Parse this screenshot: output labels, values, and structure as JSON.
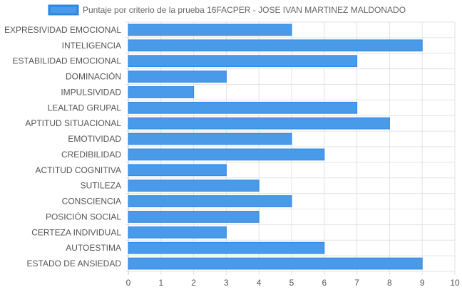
{
  "chart_data": {
    "type": "bar",
    "orientation": "horizontal",
    "legend": {
      "label": "Puntaje por criterio de la prueba 16FACPER - JOSE IVAN MARTINEZ MALDONADO",
      "position": "top"
    },
    "categories": [
      "EXPRESIVIDAD EMOCIONAL",
      "INTELIGENCIA",
      "ESTABILIDAD EMOCIONAL",
      "DOMINACIÓN",
      "IMPULSIVIDAD",
      "LEALTAD GRUPAL",
      "APTITUD SITUACIONAL",
      "EMOTIVIDAD",
      "CREDIBILIDAD",
      "ACTITUD COGNITIVA",
      "SUTILEZA",
      "CONSCIENCIA",
      "POSICIÓN SOCIAL",
      "CERTEZA INDIVIDUAL",
      "AUTOESTIMA",
      "ESTADO DE ANSIEDAD"
    ],
    "series": [
      {
        "name": "Puntaje por criterio de la prueba 16FACPER - JOSE IVAN MARTINEZ MALDONADO",
        "values": [
          5,
          9,
          7,
          3,
          2,
          7,
          8,
          5,
          6,
          3,
          4,
          5,
          4,
          3,
          6,
          9
        ]
      }
    ],
    "xlim": [
      0,
      10
    ],
    "x_ticks": [
      "0",
      "1",
      "2",
      "3",
      "4",
      "5",
      "6",
      "7",
      "8",
      "9",
      "10"
    ],
    "grid": true,
    "colors": {
      "bar_fill": "#4a9aea",
      "bar_stroke": "#2f86e0",
      "grid": "#e3e3e3",
      "axis": "#c8c8c8",
      "text": "#555555"
    }
  }
}
